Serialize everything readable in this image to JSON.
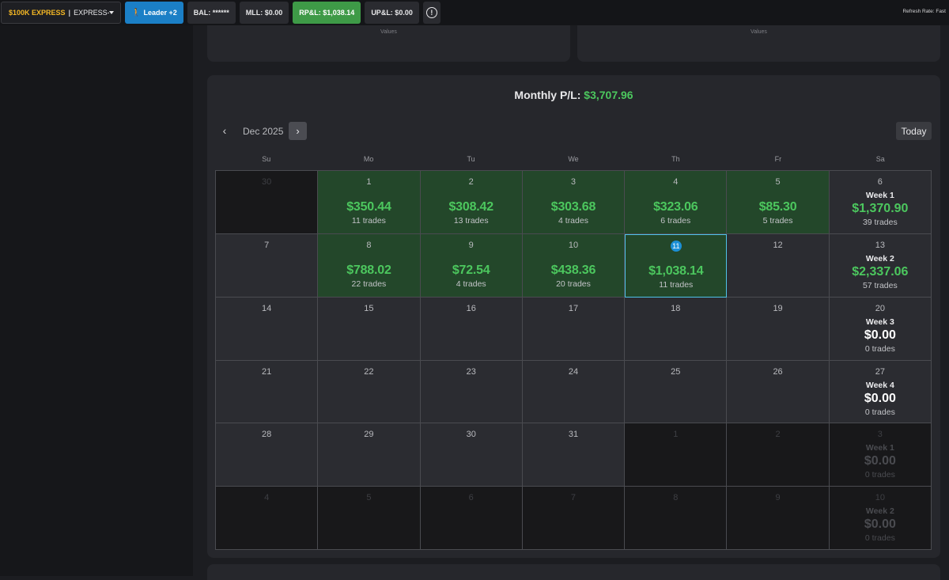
{
  "topbar": {
    "account_tag": "$100K EXPRESS",
    "account_sep": "|",
    "account_name": "EXPRESS-...",
    "leader_label": "Leader +2",
    "bal_label": "BAL: ******",
    "mll_label": "MLL: $0.00",
    "rpl_label": "RP&L: $1,038.14",
    "upl_label": "UP&L: $0.00",
    "info_glyph": "!",
    "refresh_label": "Refresh Rate: Fast"
  },
  "top_cards": {
    "left_label": "Values",
    "right_label": "Values"
  },
  "calendar": {
    "monthly_label": "Monthly P/L:",
    "monthly_value": "$3,707.96",
    "prev_glyph": "‹",
    "month_label": "Dec 2025",
    "next_glyph": "›",
    "today_label": "Today",
    "weekdays": [
      "Su",
      "Mo",
      "Tu",
      "We",
      "Th",
      "Fr",
      "Sa"
    ],
    "weeks": [
      [
        {
          "day": "30",
          "out": true
        },
        {
          "day": "1",
          "pnl": "$350.44",
          "trades": "11 trades",
          "profit": true
        },
        {
          "day": "2",
          "pnl": "$308.42",
          "trades": "13 trades",
          "profit": true
        },
        {
          "day": "3",
          "pnl": "$303.68",
          "trades": "4 trades",
          "profit": true
        },
        {
          "day": "4",
          "pnl": "$323.06",
          "trades": "6 trades",
          "profit": true
        },
        {
          "day": "5",
          "pnl": "$85.30",
          "trades": "5 trades",
          "profit": true
        },
        {
          "day": "6",
          "week": "Week 1",
          "week_pnl": "$1,370.90",
          "week_trades": "39 trades"
        }
      ],
      [
        {
          "day": "7"
        },
        {
          "day": "8",
          "pnl": "$788.02",
          "trades": "22 trades",
          "profit": true
        },
        {
          "day": "9",
          "pnl": "$72.54",
          "trades": "4 trades",
          "profit": true
        },
        {
          "day": "10",
          "pnl": "$438.36",
          "trades": "20 trades",
          "profit": true
        },
        {
          "day": "11",
          "pnl": "$1,038.14",
          "trades": "11 trades",
          "profit": true,
          "today": true
        },
        {
          "day": "12"
        },
        {
          "day": "13",
          "week": "Week 2",
          "week_pnl": "$2,337.06",
          "week_trades": "57 trades"
        }
      ],
      [
        {
          "day": "14"
        },
        {
          "day": "15"
        },
        {
          "day": "16"
        },
        {
          "day": "17"
        },
        {
          "day": "18"
        },
        {
          "day": "19"
        },
        {
          "day": "20",
          "week": "Week 3",
          "week_pnl": "$0.00",
          "week_trades": "0 trades",
          "zero": true
        }
      ],
      [
        {
          "day": "21"
        },
        {
          "day": "22"
        },
        {
          "day": "23"
        },
        {
          "day": "24"
        },
        {
          "day": "25"
        },
        {
          "day": "26"
        },
        {
          "day": "27",
          "week": "Week 4",
          "week_pnl": "$0.00",
          "week_trades": "0 trades",
          "zero": true
        }
      ],
      [
        {
          "day": "28"
        },
        {
          "day": "29"
        },
        {
          "day": "30"
        },
        {
          "day": "31"
        },
        {
          "day": "1",
          "out": true
        },
        {
          "day": "2",
          "out": true
        },
        {
          "day": "3",
          "out": true,
          "week": "Week 1",
          "week_pnl": "$0.00",
          "week_trades": "0 trades",
          "zero": true
        }
      ],
      [
        {
          "day": "4",
          "out": true
        },
        {
          "day": "5",
          "out": true
        },
        {
          "day": "6",
          "out": true
        },
        {
          "day": "7",
          "out": true
        },
        {
          "day": "8",
          "out": true
        },
        {
          "day": "9",
          "out": true
        },
        {
          "day": "10",
          "out": true,
          "week": "Week 2",
          "week_pnl": "$0.00",
          "week_trades": "0 trades",
          "zero": true
        }
      ]
    ]
  }
}
